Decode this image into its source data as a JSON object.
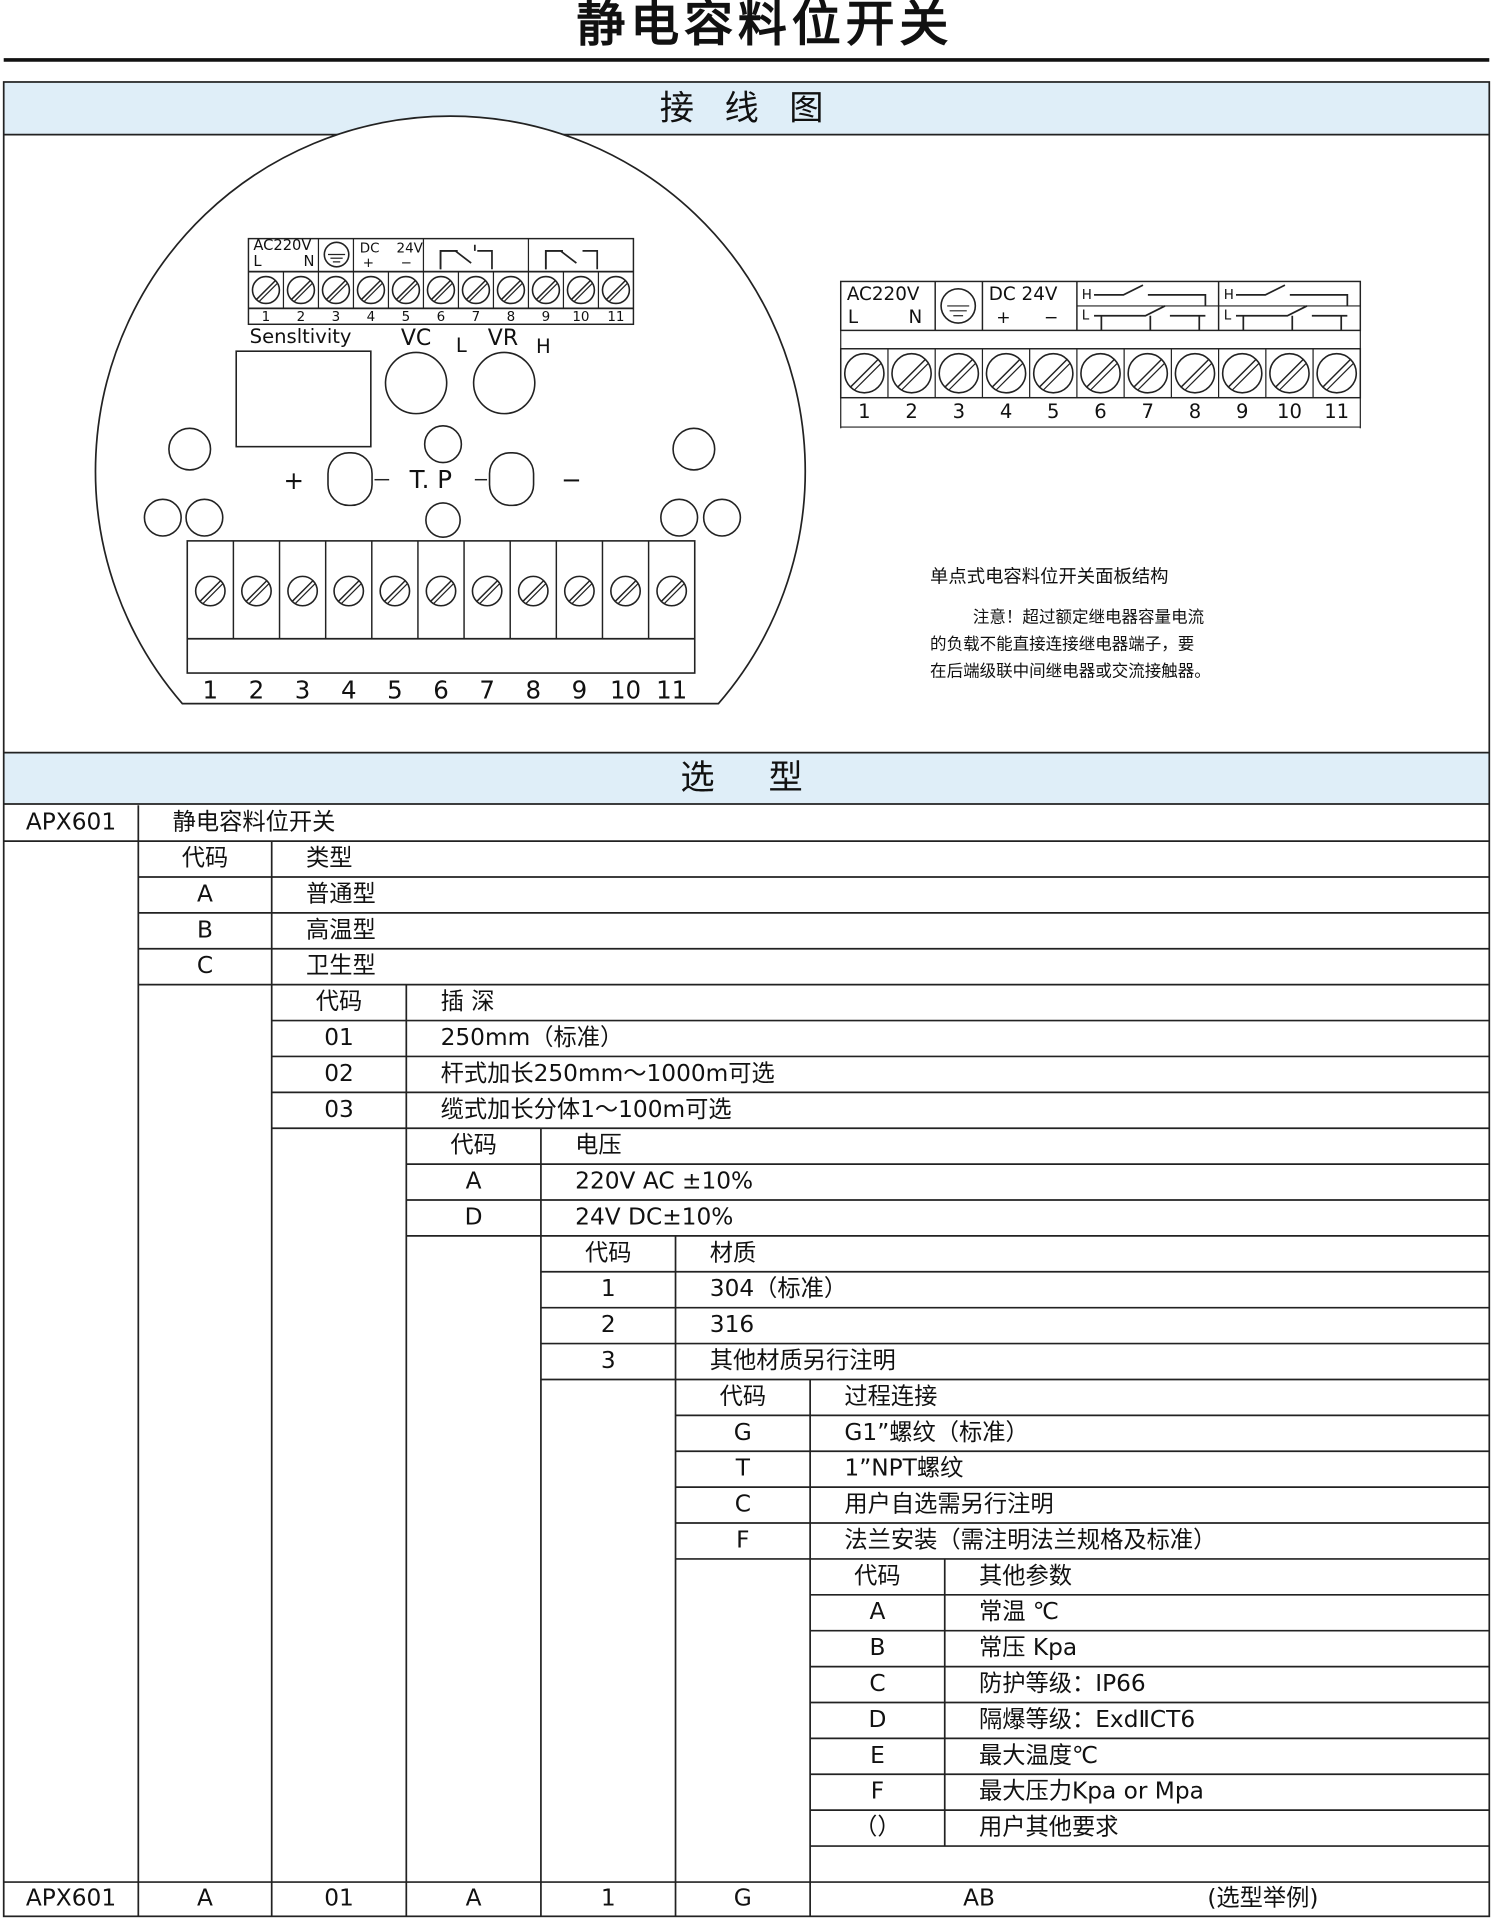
{
  "title": "静电容料位开关",
  "wiring": {
    "heading": "接 线 图",
    "left_panel": {
      "top_block": {
        "ac": "AC220V",
        "l": "L",
        "n": "N",
        "dc": "DC",
        "plus": "+",
        "minus": "−",
        "v24": "24V",
        "numbers": [
          1,
          2,
          3,
          4,
          5,
          6,
          7,
          8,
          9,
          10,
          11
        ]
      },
      "sensitivity": "Sensltivity",
      "vc": "VC",
      "l": "L",
      "vr": "VR",
      "h": "H",
      "plus": "+",
      "tp": "T. P",
      "minus": "−",
      "numbers": [
        1,
        2,
        3,
        4,
        5,
        6,
        7,
        8,
        9,
        10,
        11
      ]
    },
    "right_panel": {
      "ac": "AC220V",
      "l": "L",
      "n": "N",
      "dc": "DC 24V",
      "plus": "+",
      "minus": "−",
      "relay1": [
        "H",
        "L"
      ],
      "relay2": [
        "H",
        "L"
      ],
      "numbers": [
        1,
        2,
        3,
        4,
        5,
        6,
        7,
        8,
        9,
        10,
        11
      ]
    },
    "caption": "单点式电容料位开关面板结构",
    "note": [
      "注意！超过额定继电器容量电流",
      "的负载不能直接连接继电器端子，要",
      "在后端级联中间继电器或交流接触器。"
    ]
  },
  "selection": {
    "heading": "选　型",
    "model": {
      "code": "APX601",
      "name": "静电容料位开关"
    },
    "groups": [
      {
        "header": [
          "代码",
          "类型"
        ],
        "options": [
          [
            "A",
            "普通型"
          ],
          [
            "B",
            "高温型"
          ],
          [
            "C",
            "卫生型"
          ]
        ]
      },
      {
        "header": [
          "代码",
          "插 深"
        ],
        "options": [
          [
            "01",
            "250mm（标准）"
          ],
          [
            "02",
            "杆式加长250mm～1000m可选"
          ],
          [
            "03",
            "缆式加长分体1～100m可选"
          ]
        ]
      },
      {
        "header": [
          "代码",
          "电压"
        ],
        "options": [
          [
            "A",
            "220V AC  ±10%"
          ],
          [
            "D",
            "24V DC±10%"
          ]
        ]
      },
      {
        "header": [
          "代码",
          "材质"
        ],
        "options": [
          [
            "1",
            "304（标准）"
          ],
          [
            "2",
            "316"
          ],
          [
            "3",
            "其他材质另行注明"
          ]
        ]
      },
      {
        "header": [
          "代码",
          "过程连接"
        ],
        "options": [
          [
            "G",
            "G1”螺纹（标准）"
          ],
          [
            "T",
            "1”NPT螺纹"
          ],
          [
            "C",
            "用户自选需另行注明"
          ],
          [
            "F",
            "法兰安装（需注明法兰规格及标准）"
          ]
        ]
      },
      {
        "header": [
          "代码",
          "其他参数"
        ],
        "options": [
          [
            "A",
            "常温  ℃"
          ],
          [
            "B",
            "常压  Kpa"
          ],
          [
            "C",
            "防护等级：IP66"
          ],
          [
            "D",
            "隔爆等级：ExdⅡCT6"
          ],
          [
            "E",
            "最大温度℃"
          ],
          [
            "F",
            "最大压力Kpa or Mpa"
          ],
          [
            "（）",
            "用户其他要求"
          ]
        ]
      }
    ],
    "example": {
      "cells": [
        "APX601",
        "A",
        "01",
        "A",
        "1",
        "G",
        "AB"
      ],
      "note": "(选型举例)"
    }
  }
}
